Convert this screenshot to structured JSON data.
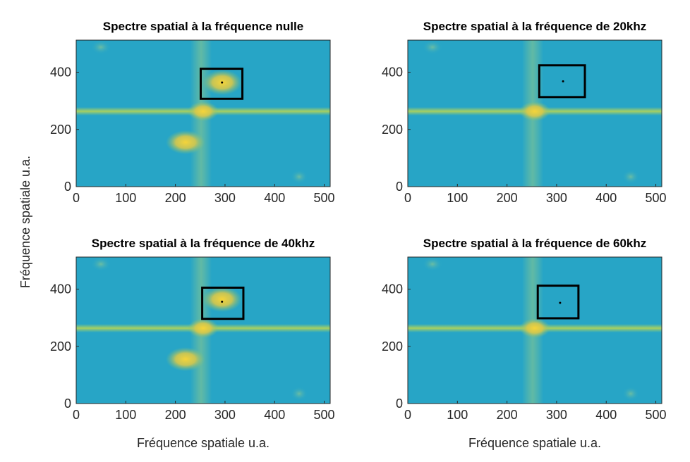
{
  "chart_data": [
    {
      "type": "image",
      "title": "Spectre spatial à la fréquence nulle",
      "ylabel": "Fréquence spatiale u.a.",
      "xlim": [
        0,
        512
      ],
      "ylim": [
        0,
        512
      ],
      "xticks": [
        0,
        100,
        200,
        300,
        400,
        500
      ],
      "yticks": [
        0,
        200,
        400
      ],
      "box": {
        "x0": 251,
        "x1": 335,
        "y0": 307,
        "y1": 412
      },
      "point": [
        294,
        364
      ],
      "blobs": true
    },
    {
      "type": "image",
      "title": "Spectre spatial à la fréquence de 20khz",
      "xlim": [
        0,
        512
      ],
      "ylim": [
        0,
        512
      ],
      "xticks": [
        0,
        100,
        200,
        300,
        400,
        500
      ],
      "yticks": [
        0,
        200,
        400
      ],
      "box": {
        "x0": 265,
        "x1": 357,
        "y0": 313,
        "y1": 424
      },
      "point": [
        313,
        368
      ],
      "blobs": false
    },
    {
      "type": "image",
      "title": "Spectre spatial à la fréquence de 40khz",
      "xlabel": "Fréquence spatiale u.a.",
      "xlim": [
        0,
        512
      ],
      "ylim": [
        0,
        512
      ],
      "xticks": [
        0,
        100,
        200,
        300,
        400,
        500
      ],
      "yticks": [
        0,
        200,
        400
      ],
      "box": {
        "x0": 254,
        "x1": 337,
        "y0": 296,
        "y1": 405
      },
      "point": [
        294,
        356
      ],
      "blobs": true
    },
    {
      "type": "image",
      "title": "Spectre spatial à la fréquence de 60khz",
      "xlabel": "Fréquence spatiale u.a.",
      "xlim": [
        0,
        512
      ],
      "ylim": [
        0,
        512
      ],
      "xticks": [
        0,
        100,
        200,
        300,
        400,
        500
      ],
      "yticks": [
        0,
        200,
        400
      ],
      "box": {
        "x0": 262,
        "x1": 344,
        "y0": 298,
        "y1": 412
      },
      "point": [
        307,
        352
      ],
      "blobs": false
    }
  ]
}
